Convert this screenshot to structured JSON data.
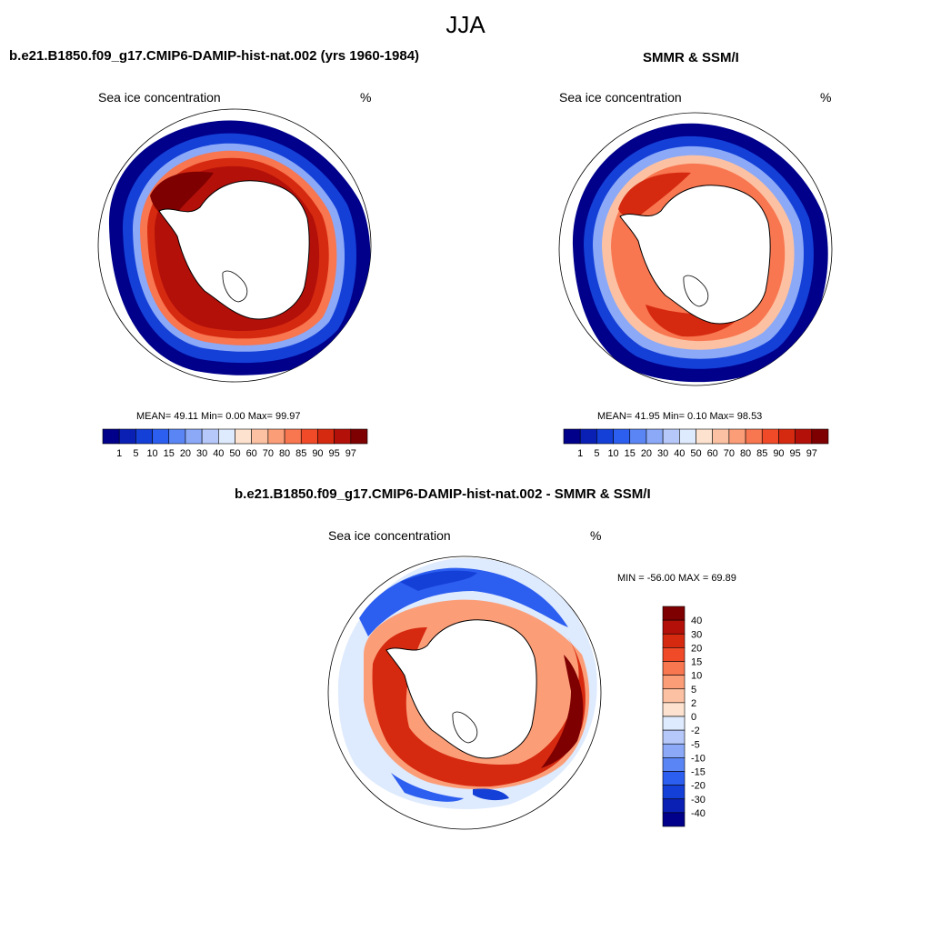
{
  "figure": {
    "season": "JJA",
    "panels": [
      {
        "id": "model",
        "title": "b.e21.B1850.f09_g17.CMIP6-DAMIP-hist-nat.002 (yrs 1960-1984)",
        "variable": "Sea ice concentration",
        "unit": "%",
        "stats": "MEAN=  49.11  Min=   0.00  Max=  99.97",
        "stats_values": {
          "mean": 49.11,
          "min": 0.0,
          "max": 99.97
        }
      },
      {
        "id": "obs",
        "title": "SMMR & SSM/I",
        "variable": "Sea ice concentration",
        "unit": "%",
        "stats": "MEAN=  41.95  Min=   0.10  Max=  98.53",
        "stats_values": {
          "mean": 41.95,
          "min": 0.1,
          "max": 98.53
        }
      },
      {
        "id": "diff",
        "title": "b.e21.B1850.f09_g17.CMIP6-DAMIP-hist-nat.002 - SMMR & SSM/I",
        "variable": "Sea ice concentration",
        "unit": "%",
        "stats": "MIN = -56.00 MAX =  69.89",
        "stats_values": {
          "min": -56.0,
          "max": 69.89
        }
      }
    ],
    "colorbar_conc": {
      "ticks": [
        "1",
        "5",
        "10",
        "15",
        "20",
        "30",
        "40",
        "50",
        "60",
        "70",
        "80",
        "85",
        "90",
        "95",
        "97"
      ],
      "colors": [
        "#00008b",
        "#0a1fb4",
        "#1440d8",
        "#2c5ef0",
        "#5a86f5",
        "#8ba9f7",
        "#b6c8f9",
        "#deeafd",
        "#fde2cf",
        "#fcc1a2",
        "#fb9e78",
        "#f87650",
        "#f14a28",
        "#d62a10",
        "#b4100a",
        "#7f0000"
      ]
    },
    "colorbar_diff": {
      "ticks": [
        "40",
        "30",
        "20",
        "15",
        "10",
        "5",
        "2",
        "0",
        "-2",
        "-5",
        "-10",
        "-15",
        "-20",
        "-30",
        "-40"
      ],
      "colors": [
        "#7f0000",
        "#b4100a",
        "#d62a10",
        "#f14a28",
        "#f87650",
        "#fb9e78",
        "#fcc1a2",
        "#fde2cf",
        "#deeafd",
        "#b6c8f9",
        "#8ba9f7",
        "#5a86f5",
        "#2c5ef0",
        "#1440d8",
        "#0a1fb4",
        "#00008b"
      ]
    }
  }
}
